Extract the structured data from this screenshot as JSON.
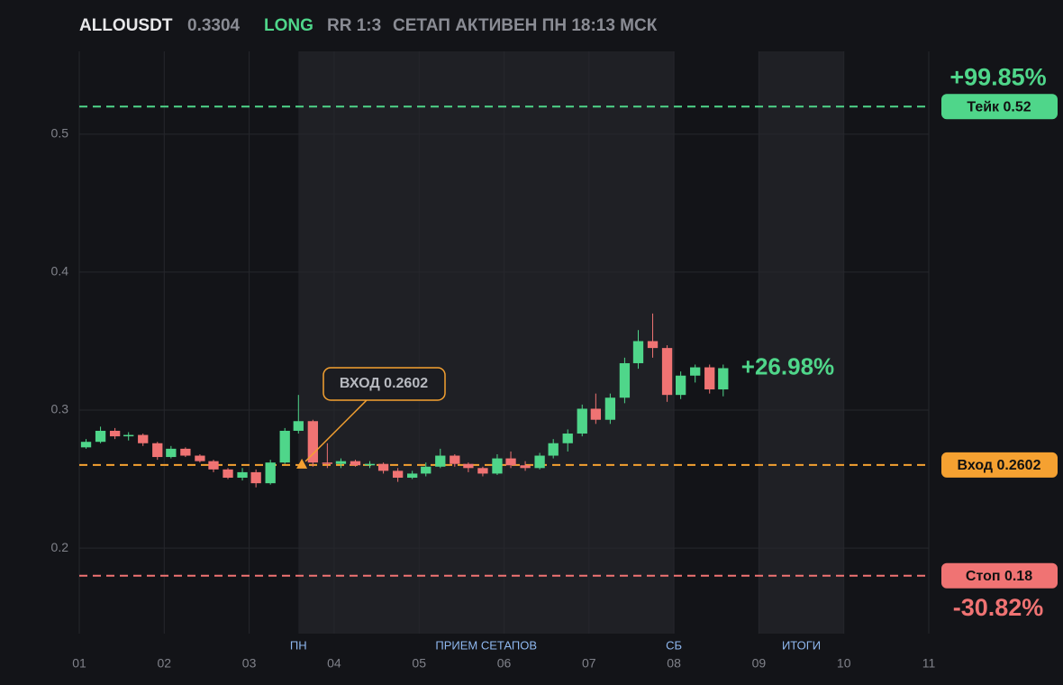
{
  "chart_data": {
    "type": "candlestick",
    "header": {
      "symbol": "ALLOUSDT",
      "last_price": 0.3304,
      "side": "LONG",
      "rr": "RR 1:3",
      "status": "СЕТАП АКТИВЕН ПН 18:13 МСК"
    },
    "xlim": [
      1,
      11
    ],
    "xticks": [
      {
        "value": 1,
        "label": "01"
      },
      {
        "value": 2,
        "label": "02"
      },
      {
        "value": 3,
        "label": "03"
      },
      {
        "value": 4,
        "label": "04"
      },
      {
        "value": 5,
        "label": "05"
      },
      {
        "value": 6,
        "label": "06"
      },
      {
        "value": 7,
        "label": "07"
      },
      {
        "value": 8,
        "label": "08"
      },
      {
        "value": 9,
        "label": "09"
      },
      {
        "value": 10,
        "label": "10"
      },
      {
        "value": 11,
        "label": "11"
      }
    ],
    "ylim": [
      0.138,
      0.56
    ],
    "yticks": [
      0.2,
      0.3,
      0.4,
      0.5
    ],
    "grid": true,
    "up_color": "#4fd68a",
    "down_color": "#f07373",
    "x": [
      1.08,
      1.25,
      1.42,
      1.58,
      1.75,
      1.92,
      2.08,
      2.25,
      2.42,
      2.58,
      2.75,
      2.92,
      3.08,
      3.25,
      3.42,
      3.58,
      3.75,
      3.92,
      4.08,
      4.25,
      4.42,
      4.58,
      4.75,
      4.92,
      5.08,
      5.25,
      5.42,
      5.58,
      5.75,
      5.92,
      6.08,
      6.25,
      6.42,
      6.58,
      6.75,
      6.92,
      7.08,
      7.25,
      7.42,
      7.58,
      7.75,
      7.92,
      8.08,
      8.25,
      8.42,
      8.58
    ],
    "open": [
      0.273,
      0.277,
      0.285,
      0.281,
      0.282,
      0.276,
      0.266,
      0.272,
      0.267,
      0.263,
      0.257,
      0.251,
      0.255,
      0.247,
      0.262,
      0.285,
      0.292,
      0.262,
      0.261,
      0.263,
      0.26,
      0.261,
      0.256,
      0.251,
      0.254,
      0.259,
      0.267,
      0.261,
      0.258,
      0.254,
      0.265,
      0.26,
      0.258,
      0.267,
      0.276,
      0.283,
      0.301,
      0.293,
      0.309,
      0.334,
      0.35,
      0.345,
      0.311,
      0.325,
      0.331,
      0.315
    ],
    "high": [
      0.279,
      0.288,
      0.287,
      0.284,
      0.283,
      0.277,
      0.274,
      0.273,
      0.268,
      0.264,
      0.258,
      0.258,
      0.257,
      0.264,
      0.287,
      0.311,
      0.293,
      0.276,
      0.265,
      0.264,
      0.263,
      0.262,
      0.258,
      0.256,
      0.262,
      0.272,
      0.268,
      0.262,
      0.259,
      0.268,
      0.27,
      0.263,
      0.269,
      0.279,
      0.286,
      0.304,
      0.312,
      0.312,
      0.338,
      0.358,
      0.37,
      0.347,
      0.328,
      0.333,
      0.333,
      0.333
    ],
    "low": [
      0.272,
      0.276,
      0.279,
      0.278,
      0.274,
      0.264,
      0.265,
      0.266,
      0.262,
      0.255,
      0.25,
      0.249,
      0.244,
      0.246,
      0.261,
      0.283,
      0.259,
      0.258,
      0.258,
      0.259,
      0.258,
      0.254,
      0.248,
      0.25,
      0.252,
      0.258,
      0.259,
      0.255,
      0.252,
      0.253,
      0.258,
      0.256,
      0.257,
      0.265,
      0.27,
      0.281,
      0.29,
      0.29,
      0.305,
      0.33,
      0.338,
      0.306,
      0.308,
      0.32,
      0.312,
      0.31
    ],
    "close": [
      0.277,
      0.285,
      0.281,
      0.282,
      0.276,
      0.266,
      0.272,
      0.267,
      0.263,
      0.257,
      0.251,
      0.255,
      0.247,
      0.262,
      0.285,
      0.292,
      0.262,
      0.261,
      0.263,
      0.26,
      0.261,
      0.256,
      0.251,
      0.254,
      0.259,
      0.267,
      0.261,
      0.258,
      0.254,
      0.265,
      0.26,
      0.258,
      0.267,
      0.276,
      0.283,
      0.301,
      0.293,
      0.309,
      0.334,
      0.35,
      0.345,
      0.311,
      0.325,
      0.331,
      0.315,
      0.3304
    ],
    "periods": [
      {
        "xlim": [
          3.58,
          8.0
        ],
        "start_label": "ПН",
        "label": "ПРИЕМ СЕТАПОВ",
        "end_label": "СБ"
      },
      {
        "xlim": [
          9,
          10
        ],
        "label": "ИТОГИ"
      }
    ],
    "levels": [
      {
        "value": 0.52,
        "label": "Тейк 0.52",
        "color": "#4fd68a",
        "pct": "+99.85%",
        "pct_position": "above"
      },
      {
        "value": 0.2602,
        "label": "Вход 0.2602",
        "color": "#f5a131"
      },
      {
        "value": 0.18,
        "label": "Стоп 0.18",
        "color": "#f07373",
        "pct": "-30.82%",
        "pct_position": "below"
      }
    ],
    "entry_marker": {
      "text": "ВХОД 0.2602",
      "x": 3.62,
      "y": 0.2602,
      "color": "#f5a131"
    },
    "current_change": "+26.98%"
  }
}
